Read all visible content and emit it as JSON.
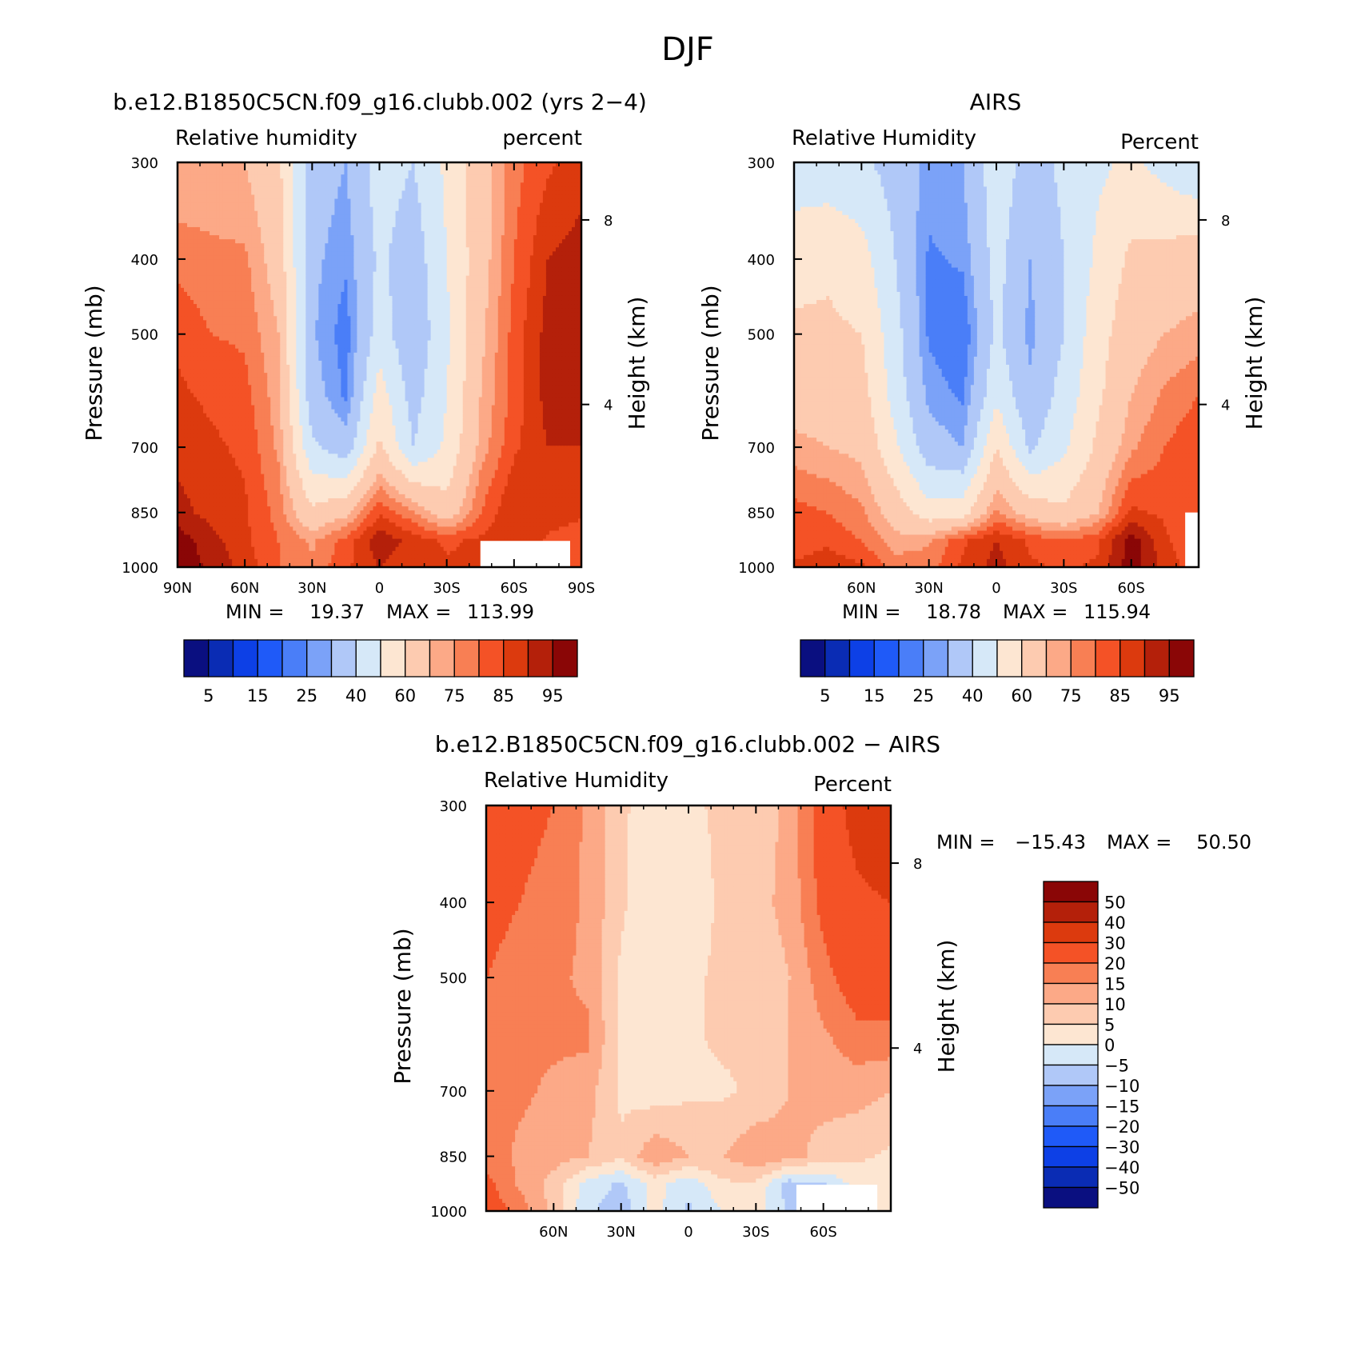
{
  "figure": {
    "title": "DJF"
  },
  "palettes": {
    "rh": [
      "#0a0f80",
      "#0a2cb4",
      "#0d40e6",
      "#1f5af8",
      "#4a7ef8",
      "#7ba2f8",
      "#b0c8f8",
      "#d6e8f8",
      "#fde6d2",
      "#fdcbb0",
      "#fca987",
      "#f87f54",
      "#f45226",
      "#dc3a0e",
      "#b4200a",
      "#8a0606"
    ],
    "diff": [
      "#0a0f80",
      "#0a2cb4",
      "#0d40e6",
      "#1f5af8",
      "#4a7ef8",
      "#7ba2f8",
      "#b0c8f8",
      "#d6e8f8",
      "#fde6d2",
      "#fdcbb0",
      "#fca987",
      "#f87f54",
      "#f45226",
      "#dc3a0e",
      "#b4200a",
      "#8a0606"
    ]
  },
  "chart_data": [
    {
      "type": "heatmap",
      "title": "b.e12.B1850C5CN.f09_g16.clubb.002 (yrs 2−4)",
      "left_label": "Relative humidity",
      "right_label": "percent",
      "ylabel": "Pressure (mb)",
      "ylabel_right": "Height (km)",
      "x_ticks": [
        "90N",
        "60N",
        "30N",
        "0",
        "30S",
        "60S",
        "90S"
      ],
      "y_ticks": [
        "300",
        "400",
        "500",
        "700",
        "850",
        "1000"
      ],
      "y_right_ticks": [
        "8",
        "4"
      ],
      "stats": {
        "min_label": "MIN =",
        "min": "19.37",
        "max_label": "MAX =",
        "max": "113.99"
      },
      "colorbar": {
        "orientation": "horizontal",
        "labels": [
          "5",
          "15",
          "25",
          "40",
          "60",
          "75",
          "85",
          "95"
        ]
      },
      "field": "rh",
      "lat": [
        90,
        75,
        60,
        45,
        30,
        15,
        0,
        -15,
        -30,
        -45,
        -60,
        -75,
        -90
      ],
      "levels_mb": [
        300,
        400,
        500,
        600,
        700,
        850,
        925,
        1000
      ],
      "values": [
        [
          70,
          72,
          70,
          62,
          35,
          30,
          45,
          40,
          52,
          66,
          78,
          84,
          88
        ],
        [
          78,
          76,
          76,
          66,
          32,
          26,
          42,
          34,
          50,
          66,
          80,
          90,
          92
        ],
        [
          84,
          80,
          79,
          70,
          31,
          22,
          45,
          32,
          48,
          68,
          82,
          92,
          94
        ],
        [
          86,
          84,
          82,
          72,
          34,
          24,
          55,
          36,
          50,
          70,
          82,
          92,
          92
        ],
        [
          88,
          86,
          84,
          74,
          42,
          34,
          62,
          40,
          52,
          72,
          84,
          90,
          90
        ],
        [
          92,
          88,
          86,
          78,
          62,
          68,
          84,
          76,
          64,
          80,
          90,
          88,
          86
        ],
        [
          98,
          92,
          86,
          80,
          74,
          82,
          94,
          88,
          84,
          86,
          90,
          84,
          82
        ],
        [
          98,
          94,
          88,
          80,
          76,
          84,
          90,
          86,
          86,
          86,
          88,
          84,
          84
        ]
      ],
      "mask": {
        "lat_from": -45,
        "lat_to": -85,
        "p_from": 925
      }
    },
    {
      "type": "heatmap",
      "title": "AIRS",
      "left_label": "Relative Humidity",
      "right_label": "Percent",
      "ylabel": "Pressure (mb)",
      "ylabel_right": "Height (km)",
      "x_ticks": [
        "",
        "60N",
        "30N",
        "0",
        "30S",
        "60S",
        ""
      ],
      "y_ticks": [
        "300",
        "400",
        "500",
        "700",
        "850",
        "1000"
      ],
      "y_right_ticks": [
        "8",
        "4"
      ],
      "stats": {
        "min_label": "MIN =",
        "min": "18.78",
        "max_label": "MAX =",
        "max": "115.94"
      },
      "colorbar": {
        "orientation": "horizontal",
        "labels": [
          "5",
          "15",
          "25",
          "40",
          "60",
          "75",
          "85",
          "95"
        ]
      },
      "field": "rh",
      "lat": [
        90,
        75,
        60,
        45,
        30,
        15,
        0,
        -15,
        -30,
        -45,
        -60,
        -75,
        -90
      ],
      "levels_mb": [
        300,
        400,
        500,
        600,
        700,
        850,
        925,
        1000
      ],
      "values": [
        [
          44,
          44,
          42,
          36,
          28,
          30,
          46,
          36,
          42,
          48,
          52,
          46,
          40
        ],
        [
          56,
          58,
          54,
          40,
          24,
          26,
          44,
          30,
          40,
          52,
          62,
          64,
          66
        ],
        [
          62,
          62,
          60,
          44,
          24,
          20,
          42,
          28,
          40,
          56,
          66,
          70,
          72
        ],
        [
          66,
          66,
          64,
          46,
          28,
          24,
          48,
          32,
          44,
          58,
          70,
          76,
          80
        ],
        [
          72,
          70,
          68,
          52,
          34,
          30,
          60,
          38,
          48,
          62,
          74,
          80,
          84
        ],
        [
          82,
          80,
          76,
          66,
          54,
          56,
          76,
          66,
          62,
          70,
          86,
          84,
          80
        ],
        [
          82,
          84,
          80,
          72,
          74,
          84,
          90,
          84,
          80,
          84,
          98,
          86,
          80
        ],
        [
          86,
          88,
          86,
          78,
          78,
          86,
          92,
          86,
          84,
          86,
          98,
          88,
          82
        ]
      ],
      "mask": {
        "lat_from": -84,
        "lat_to": -90,
        "p_from": 850
      }
    },
    {
      "type": "heatmap",
      "title": "b.e12.B1850C5CN.f09_g16.clubb.002 − AIRS",
      "left_label": "Relative Humidity",
      "right_label": "Percent",
      "ylabel": "Pressure (mb)",
      "ylabel_right": "Height (km)",
      "x_ticks": [
        "",
        "60N",
        "30N",
        "0",
        "30S",
        "60S",
        ""
      ],
      "y_ticks": [
        "300",
        "400",
        "500",
        "700",
        "850",
        "1000"
      ],
      "y_right_ticks": [
        "8",
        "4"
      ],
      "stats": {
        "min_label": "MIN =",
        "min": "−15.43",
        "max_label": "MAX =",
        "max": "50.50"
      },
      "colorbar": {
        "orientation": "vertical",
        "labels": [
          "50",
          "40",
          "30",
          "20",
          "15",
          "10",
          "5",
          "0",
          "−5",
          "−10",
          "−15",
          "−20",
          "−30",
          "−40",
          "−50"
        ]
      },
      "field": "diff",
      "lat": [
        90,
        75,
        60,
        45,
        30,
        15,
        0,
        -15,
        -30,
        -45,
        -60,
        -75,
        -90
      ],
      "levels_mb": [
        300,
        400,
        500,
        600,
        700,
        850,
        925,
        1000
      ],
      "values": [
        [
          24,
          22,
          20,
          14,
          6,
          2,
          4,
          6,
          6,
          12,
          24,
          34,
          40
        ],
        [
          22,
          20,
          18,
          14,
          6,
          0,
          2,
          6,
          8,
          12,
          22,
          28,
          30
        ],
        [
          20,
          18,
          16,
          14,
          4,
          2,
          4,
          6,
          6,
          10,
          18,
          24,
          24
        ],
        [
          18,
          16,
          16,
          16,
          4,
          0,
          4,
          6,
          6,
          10,
          14,
          18,
          18
        ],
        [
          16,
          16,
          14,
          12,
          4,
          2,
          4,
          4,
          6,
          10,
          12,
          12,
          10
        ],
        [
          18,
          14,
          12,
          10,
          6,
          14,
          10,
          10,
          14,
          12,
          8,
          6,
          4
        ],
        [
          22,
          14,
          8,
          -2,
          -6,
          2,
          -4,
          4,
          4,
          -8,
          -6,
          2,
          2
        ],
        [
          24,
          18,
          8,
          -4,
          -8,
          2,
          -6,
          0,
          2,
          -6,
          -4,
          2,
          2
        ]
      ],
      "mask": {
        "lat_from": -48,
        "lat_to": -84,
        "p_from": 925
      }
    }
  ]
}
